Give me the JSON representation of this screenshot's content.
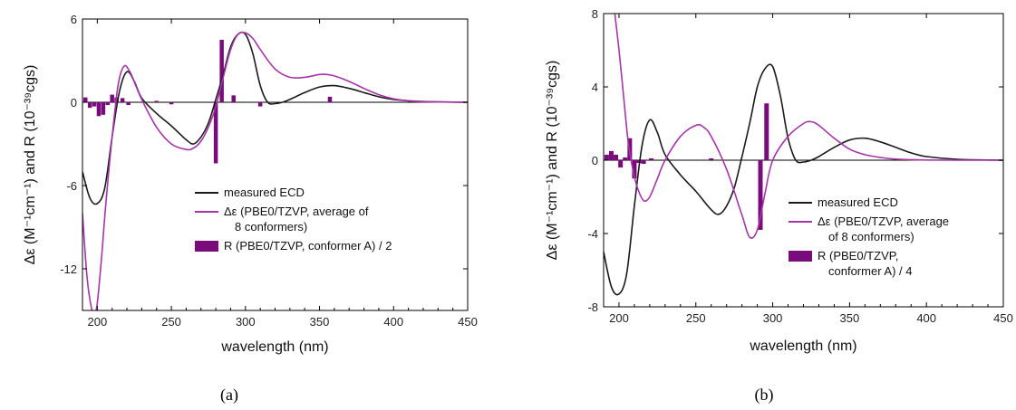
{
  "colors": {
    "measured": "#1a1a1a",
    "calculated": "#a634a8",
    "rotatory": "#7a0b7c"
  },
  "chart_data": [
    {
      "panel_label": "(a)",
      "type": "line",
      "xlabel": "wavelength (nm)",
      "ylabel": "Δε (M⁻¹cm⁻¹) and R (10⁻³⁹cgs)",
      "xlim": [
        190,
        450
      ],
      "ylim": [
        -15,
        6
      ],
      "xticks": [
        200,
        250,
        300,
        350,
        400,
        450
      ],
      "yticks": [
        6,
        0,
        -6,
        -12
      ],
      "legend": [
        {
          "label": "measured ECD",
          "kind": "line",
          "color": "#1a1a1a"
        },
        {
          "label": "Δε (PBE0/TZVP, average of",
          "label2": "8 conformers)",
          "kind": "line",
          "color": "#a634a8"
        },
        {
          "label": "R (PBE0/TZVP, conformer A) / 2",
          "kind": "bar",
          "color": "#7a0b7c"
        }
      ],
      "series": [
        {
          "name": "measured ECD",
          "x": [
            190,
            195,
            200,
            205,
            210,
            215,
            220,
            225,
            230,
            240,
            250,
            260,
            265,
            270,
            275,
            280,
            285,
            290,
            295,
            300,
            305,
            310,
            315,
            320,
            325,
            330,
            340,
            350,
            360,
            370,
            380,
            390,
            400,
            420,
            450
          ],
          "y": [
            -5,
            -6.9,
            -7.3,
            -6.2,
            -2.5,
            0.8,
            2.2,
            1.5,
            0.3,
            -0.8,
            -1.7,
            -2.7,
            -3.0,
            -2.5,
            -1.5,
            0.2,
            2.0,
            4.0,
            4.9,
            4.9,
            3.5,
            1.2,
            0.0,
            -0.1,
            0.0,
            0.2,
            0.7,
            1.1,
            1.2,
            1.0,
            0.7,
            0.4,
            0.2,
            0.05,
            0.0
          ]
        },
        {
          "name": "Δε (PBE0/TZVP, average of 8 conformers)",
          "x": [
            190,
            193,
            196,
            198,
            200,
            203,
            206,
            210,
            214,
            218,
            222,
            226,
            230,
            240,
            250,
            260,
            265,
            270,
            275,
            280,
            285,
            290,
            295,
            300,
            305,
            310,
            320,
            330,
            340,
            350,
            355,
            360,
            370,
            380,
            390,
            400,
            410,
            420,
            450
          ],
          "y": [
            -8,
            -12.5,
            -14.8,
            -15.2,
            -14.5,
            -11,
            -7,
            -2.5,
            1.2,
            2.6,
            2.2,
            1.2,
            0.2,
            -1.8,
            -3.0,
            -3.4,
            -3.3,
            -2.8,
            -1.8,
            -0.3,
            1.8,
            3.8,
            4.9,
            5.0,
            4.6,
            3.8,
            2.4,
            1.8,
            1.8,
            2.0,
            2.0,
            1.9,
            1.5,
            1.0,
            0.55,
            0.25,
            0.1,
            0.04,
            0.0
          ]
        }
      ],
      "bars": {
        "name": "R (PBE0/TZVP, conformer A) / 2",
        "x": [
          192,
          195,
          198,
          201,
          204,
          207,
          210,
          213,
          217,
          221,
          240,
          250,
          280,
          284,
          292,
          310,
          357
        ],
        "y": [
          0.35,
          -0.4,
          -0.3,
          -1.0,
          -0.9,
          -0.2,
          0.55,
          0.35,
          0.3,
          -0.2,
          0.1,
          -0.15,
          -4.4,
          4.5,
          0.5,
          -0.3,
          0.4
        ]
      }
    },
    {
      "panel_label": "(b)",
      "type": "line",
      "xlabel": "wavelength (nm)",
      "ylabel": "Δε (M⁻¹cm⁻¹) and R (10⁻³⁹cgs)",
      "xlim": [
        190,
        450
      ],
      "ylim": [
        -8,
        8
      ],
      "xticks": [
        200,
        250,
        300,
        350,
        400,
        450
      ],
      "yticks": [
        8,
        4,
        0,
        -4,
        -8
      ],
      "legend": [
        {
          "label": "measured ECD",
          "kind": "line",
          "color": "#1a1a1a"
        },
        {
          "label": "Δε (PBE0/TZVP, average",
          "label2": "of 8 conformers)",
          "kind": "line",
          "color": "#a634a8"
        },
        {
          "label": "R (PBE0/TZVP,",
          "label2": "conformer A) / 4",
          "kind": "bar",
          "color": "#7a0b7c"
        }
      ],
      "series": [
        {
          "name": "measured ECD",
          "x": [
            190,
            195,
            200,
            205,
            210,
            215,
            220,
            225,
            230,
            240,
            250,
            260,
            265,
            270,
            275,
            280,
            285,
            290,
            295,
            300,
            305,
            310,
            315,
            320,
            325,
            330,
            340,
            350,
            360,
            370,
            380,
            390,
            400,
            420,
            450
          ],
          "y": [
            -5,
            -6.9,
            -7.3,
            -6.2,
            -2.5,
            0.8,
            2.2,
            1.5,
            0.3,
            -0.8,
            -1.7,
            -2.7,
            -2.95,
            -2.5,
            -1.5,
            0.2,
            2.0,
            4.0,
            5.0,
            5.1,
            3.5,
            1.2,
            0.0,
            -0.1,
            0.0,
            0.2,
            0.7,
            1.1,
            1.2,
            1.0,
            0.7,
            0.4,
            0.2,
            0.05,
            0.0
          ]
        },
        {
          "name": "Δε (PBE0/TZVP, average of 8 conformers)",
          "x": [
            197,
            200,
            203,
            206,
            209,
            212,
            216,
            220,
            225,
            230,
            240,
            250,
            255,
            260,
            270,
            280,
            285,
            290,
            295,
            300,
            310,
            320,
            325,
            330,
            340,
            350,
            360,
            370,
            380,
            390,
            400,
            420,
            450
          ],
          "y": [
            8.2,
            6.0,
            3.5,
            1.0,
            -0.5,
            -1.5,
            -2.2,
            -2.0,
            -1.0,
            0.0,
            1.3,
            1.9,
            1.8,
            1.3,
            -0.5,
            -3.0,
            -4.2,
            -3.8,
            -1.8,
            0.0,
            1.3,
            2.0,
            2.1,
            1.9,
            1.2,
            0.6,
            0.3,
            0.15,
            0.06,
            0.03,
            0.01,
            0.0,
            0.0
          ]
        }
      ],
      "bars": {
        "name": "R (PBE0/TZVP, conformer A) / 4",
        "x": [
          192,
          195,
          198,
          201,
          204,
          207,
          210,
          213,
          216,
          221,
          260,
          292,
          296
        ],
        "y": [
          0.3,
          0.5,
          0.3,
          -0.4,
          0.15,
          1.2,
          -1.0,
          -0.15,
          -0.2,
          0.1,
          0.1,
          -3.8,
          3.1
        ]
      }
    }
  ]
}
